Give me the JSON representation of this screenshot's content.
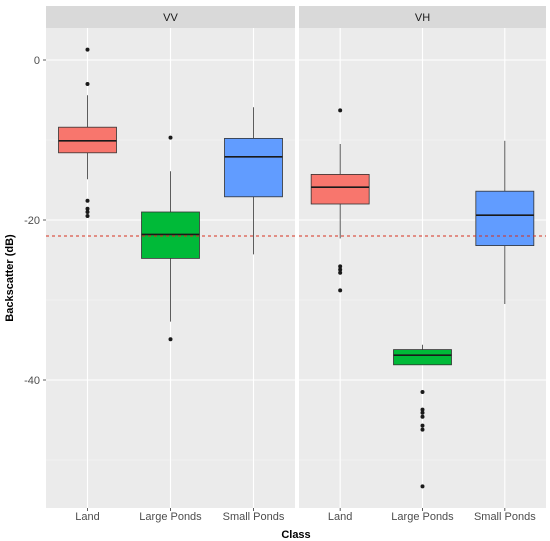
{
  "chart_data": {
    "type": "boxplot",
    "xlabel": "Class",
    "ylabel": "Backscatter (dB)",
    "ylim": [
      -56,
      4
    ],
    "yticks": [
      0,
      -20,
      -40
    ],
    "categories": [
      "Land",
      "Large Ponds",
      "Small Ponds"
    ],
    "reference_line": {
      "y": -22,
      "style": "dashed",
      "color": "#d7301f"
    },
    "colors": {
      "Land": "#f8766d",
      "Large Ponds": "#00ba38",
      "Small Ponds": "#619cff"
    },
    "panel_bg": "#ebebeb",
    "grid": true,
    "facets": [
      {
        "label": "VV",
        "boxes": [
          {
            "category": "Land",
            "lower_whisker": -14.9,
            "q1": -11.6,
            "median": -10.1,
            "q3": -8.4,
            "upper_whisker": -4.4,
            "outliers": [
              1.3,
              -3.0,
              -17.6,
              -18.6,
              -19.0,
              -19.5
            ]
          },
          {
            "category": "Large Ponds",
            "lower_whisker": -32.7,
            "q1": -24.8,
            "median": -21.8,
            "q3": -19.0,
            "upper_whisker": -13.9,
            "outliers": [
              -9.7,
              -34.9
            ]
          },
          {
            "category": "Small Ponds",
            "lower_whisker": -24.3,
            "q1": -17.1,
            "median": -12.1,
            "q3": -9.8,
            "upper_whisker": -5.9,
            "outliers": []
          }
        ]
      },
      {
        "label": "VH",
        "boxes": [
          {
            "category": "Land",
            "lower_whisker": -22.3,
            "q1": -18.0,
            "median": -15.9,
            "q3": -14.3,
            "upper_whisker": -10.5,
            "outliers": [
              -6.3,
              -25.8,
              -26.2,
              -26.6,
              -28.8
            ]
          },
          {
            "category": "Large Ponds",
            "lower_whisker": -38.1,
            "q1": -38.1,
            "median": -36.9,
            "q3": -36.2,
            "upper_whisker": -35.6,
            "outliers": [
              -41.5,
              -43.7,
              -44.1,
              -44.6,
              -45.7,
              -46.2,
              -53.3
            ]
          },
          {
            "category": "Small Ponds",
            "lower_whisker": -30.5,
            "q1": -23.2,
            "median": -19.4,
            "q3": -16.4,
            "upper_whisker": -10.1,
            "outliers": []
          }
        ]
      }
    ]
  }
}
